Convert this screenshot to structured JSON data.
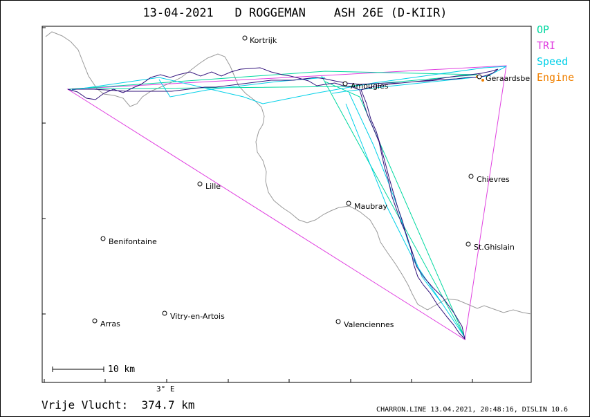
{
  "title": "13-04-2021   D ROGGEMAN    ASH 26E (D-KIIR)",
  "legend": [
    {
      "label": "OP",
      "color": "#00d8a0"
    },
    {
      "label": "TRI",
      "color": "#e040e0"
    },
    {
      "label": "Speed",
      "color": "#00d0e8"
    },
    {
      "label": "Engine",
      "color": "#f08000"
    }
  ],
  "towns": [
    {
      "name": "Kortrijk"
    },
    {
      "name": "Amougies"
    },
    {
      "name": "Geraardsbe"
    },
    {
      "name": "Lille"
    },
    {
      "name": "Chievres"
    },
    {
      "name": "Maubray"
    },
    {
      "name": "Benifontaine"
    },
    {
      "name": "St.Ghislain"
    },
    {
      "name": "Arras"
    },
    {
      "name": "Vitry-en-Artois"
    },
    {
      "name": "Valenciennes"
    }
  ],
  "scale_label": "10 km",
  "longitude_label": "3° E",
  "distance": "Vrije Vlucht:  374.7 km",
  "footer": "CHARRON.LINE 13.04.2021, 20:48:16, DISLIN 10.6",
  "colors": {
    "track": "#30107a",
    "op": "#00d8a0",
    "triangle": "#e040e0",
    "speed": "#00d0e8",
    "border": "#999999",
    "engine": "#f08000"
  }
}
